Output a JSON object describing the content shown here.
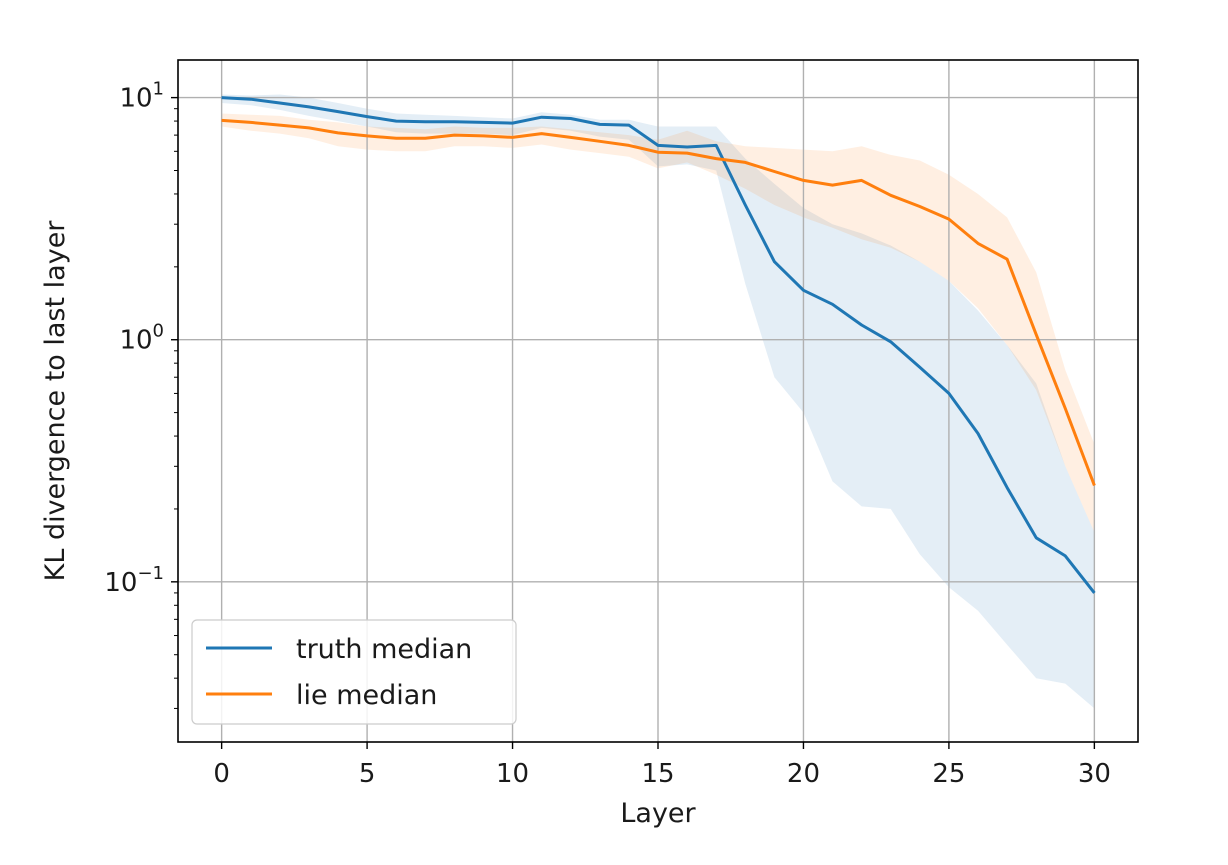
{
  "chart_data": {
    "type": "line",
    "xlabel": "Layer",
    "ylabel": "KL divergence to last layer",
    "yscale": "log",
    "xlim": [
      -1.5,
      31.5
    ],
    "ylim": [
      0.0218,
      14.3
    ],
    "grid": true,
    "legend_position": "lower-left",
    "x_ticks": [
      0,
      5,
      10,
      15,
      20,
      25,
      30
    ],
    "x_tick_labels": [
      "0",
      "5",
      "10",
      "15",
      "20",
      "25",
      "30"
    ],
    "y_ticks": [
      {
        "value": 10,
        "base": "10",
        "exp": "1"
      },
      {
        "value": 1,
        "base": "10",
        "exp": "0"
      },
      {
        "value": 0.1,
        "base": "10",
        "exp": "−1"
      }
    ],
    "x": [
      0,
      1,
      2,
      3,
      4,
      5,
      6,
      7,
      8,
      9,
      10,
      11,
      12,
      13,
      14,
      15,
      16,
      17,
      18,
      19,
      20,
      21,
      22,
      23,
      24,
      25,
      26,
      27,
      28,
      29,
      30
    ],
    "series": [
      {
        "name": "truth median",
        "color": "#1f77b4",
        "values": [
          10.0,
          9.85,
          9.5,
          9.15,
          8.75,
          8.35,
          8.0,
          7.95,
          7.95,
          7.9,
          7.85,
          8.3,
          8.2,
          7.75,
          7.7,
          6.35,
          6.25,
          6.35,
          3.6,
          2.1,
          1.6,
          1.4,
          1.15,
          0.98,
          0.77,
          0.6,
          0.41,
          0.245,
          0.152,
          0.128,
          0.09
        ],
        "band_upper": [
          10.3,
          10.2,
          10.3,
          10.0,
          9.5,
          9.0,
          8.6,
          8.5,
          8.4,
          8.3,
          8.2,
          8.7,
          8.5,
          8.1,
          8.1,
          7.6,
          7.6,
          7.6,
          5.6,
          4.4,
          3.5,
          3.0,
          2.75,
          2.45,
          2.1,
          1.75,
          1.32,
          0.95,
          0.66,
          0.3,
          0.16
        ],
        "band_lower": [
          9.5,
          9.3,
          8.9,
          8.4,
          8.0,
          7.6,
          7.2,
          7.1,
          7.1,
          7.1,
          7.0,
          7.5,
          7.3,
          6.9,
          6.7,
          5.2,
          5.3,
          5.0,
          1.7,
          0.7,
          0.5,
          0.26,
          0.205,
          0.2,
          0.13,
          0.095,
          0.076,
          0.055,
          0.04,
          0.038,
          0.03
        ]
      },
      {
        "name": "lie median",
        "color": "#ff7f0e",
        "values": [
          8.05,
          7.9,
          7.7,
          7.5,
          7.15,
          6.95,
          6.8,
          6.8,
          7.0,
          6.95,
          6.85,
          7.1,
          6.85,
          6.6,
          6.35,
          5.95,
          5.9,
          5.6,
          5.4,
          4.95,
          4.55,
          4.35,
          4.55,
          3.95,
          3.55,
          3.15,
          2.5,
          2.15,
          1.05,
          0.52,
          0.25
        ],
        "band_upper": [
          8.6,
          8.5,
          8.4,
          8.1,
          7.9,
          7.6,
          7.5,
          7.4,
          7.6,
          7.5,
          7.5,
          7.6,
          7.4,
          7.2,
          7.0,
          6.7,
          7.3,
          6.6,
          6.3,
          6.2,
          6.1,
          6.0,
          6.3,
          5.8,
          5.5,
          4.8,
          4.0,
          3.2,
          1.9,
          0.75,
          0.37
        ],
        "band_lower": [
          7.6,
          7.3,
          7.1,
          6.8,
          6.3,
          6.1,
          6.0,
          6.0,
          6.3,
          6.3,
          6.2,
          6.4,
          6.1,
          5.9,
          5.7,
          5.1,
          5.4,
          4.8,
          4.2,
          3.6,
          3.2,
          2.9,
          2.6,
          2.4,
          2.1,
          1.75,
          1.35,
          0.95,
          0.62,
          0.3,
          0.16
        ]
      }
    ]
  }
}
